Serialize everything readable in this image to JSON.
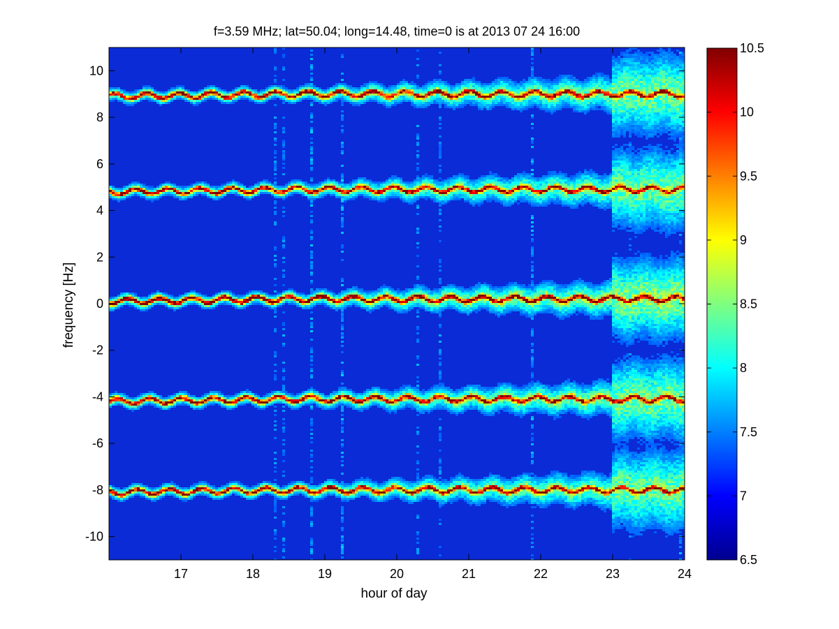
{
  "chart_data": {
    "type": "heatmap",
    "title": "f=3.59 MHz;  lat=50.04; long=14.48, time=0 is at 2013 07 24 16:00",
    "xlabel": "hour of day",
    "ylabel": "frequency [Hz]",
    "xlim": [
      16,
      24
    ],
    "ylim": [
      -11,
      11
    ],
    "x_ticks": [
      17,
      18,
      19,
      20,
      21,
      22,
      23,
      24
    ],
    "y_ticks": [
      -10,
      -8,
      -6,
      -4,
      -2,
      0,
      2,
      4,
      6,
      8,
      10
    ],
    "colorbar": {
      "range": [
        6.5,
        10.5
      ],
      "ticks": [
        6.5,
        7,
        7.5,
        8,
        8.5,
        9,
        9.5,
        10,
        10.5
      ],
      "colormap": "jet"
    },
    "background_level": 7.0,
    "traces": [
      {
        "center_hz": 9.0,
        "start_hz": 8.9,
        "peak": 10.3
      },
      {
        "center_hz": 4.9,
        "start_hz": 4.8,
        "peak": 10.2
      },
      {
        "center_hz": 0.2,
        "start_hz": 0.1,
        "peak": 10.5
      },
      {
        "center_hz": -4.1,
        "start_hz": -4.2,
        "peak": 10.3
      },
      {
        "center_hz": -8.0,
        "start_hz": -8.1,
        "peak": 10.2
      }
    ],
    "grid": false
  },
  "colors": {
    "background": "#ffffff",
    "axis": "#000000"
  }
}
